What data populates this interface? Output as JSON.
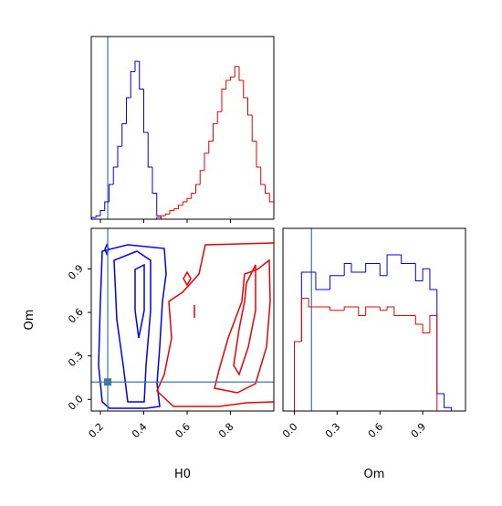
{
  "chart_data": {
    "type": "corner",
    "parameters": [
      {
        "name": "H0",
        "lim": [
          0.158,
          1.0
        ],
        "ticks": [
          0.2,
          0.4,
          0.6,
          0.8
        ]
      },
      {
        "name": "Om",
        "lim": [
          -0.08,
          1.2
        ],
        "ticks": [
          {
            "value": 0,
            "label": "0.0"
          },
          0.3,
          0.6,
          0.9
        ]
      }
    ],
    "om_ylim": [
      -0.08,
      1.18
    ],
    "hist_ylim": [
      0,
      1
    ],
    "truths": [
      0.234,
      0.12
    ],
    "truth_color": "#3b78a8",
    "series": [
      {
        "color": "#0000ee",
        "hists": [
          {
            "bins": [
              0.16,
              0.18,
              0.2,
              0.22,
              0.24,
              0.26,
              0.28,
              0.3,
              0.32,
              0.34,
              0.36,
              0.38,
              0.4,
              0.42,
              0.44,
              0.46,
              0.48
            ],
            "counts": [
              0.01,
              0.02,
              0.05,
              0.1,
              0.2,
              0.3,
              0.42,
              0.55,
              0.7,
              0.85,
              0.91,
              0.75,
              0.5,
              0.3,
              0.15,
              0.02
            ]
          },
          {
            "bins": [
              0,
              0.05,
              0.1,
              0.15,
              0.2,
              0.25,
              0.3,
              0.35,
              0.4,
              0.45,
              0.5,
              0.55,
              0.6,
              0.65,
              0.7,
              0.75,
              0.8,
              0.85,
              0.9,
              0.95,
              1.0,
              1.05,
              1.1
            ],
            "counts": [
              0.4,
              0.8,
              0.8,
              0.7,
              0.7,
              0.78,
              0.78,
              0.85,
              0.8,
              0.8,
              0.85,
              0.85,
              0.78,
              0.9,
              0.9,
              0.85,
              0.85,
              0.75,
              0.82,
              0.7,
              0.1,
              0.02
            ]
          }
        ]
      },
      {
        "color": "#ee0000",
        "hists": [
          {
            "bins": [
              0.46,
              0.48,
              0.5,
              0.52,
              0.54,
              0.56,
              0.58,
              0.6,
              0.62,
              0.64,
              0.66,
              0.68,
              0.7,
              0.72,
              0.74,
              0.76,
              0.78,
              0.8,
              0.82,
              0.84,
              0.86,
              0.88,
              0.9,
              0.92,
              0.94,
              0.96,
              0.98,
              1.0
            ],
            "counts": [
              0.01,
              0.02,
              0.03,
              0.05,
              0.06,
              0.08,
              0.1,
              0.12,
              0.15,
              0.2,
              0.28,
              0.38,
              0.45,
              0.55,
              0.62,
              0.75,
              0.8,
              0.82,
              0.88,
              0.8,
              0.7,
              0.6,
              0.45,
              0.3,
              0.2,
              0.15,
              0.1
            ]
          },
          {
            "bins": [
              0,
              0.05,
              0.1,
              0.15,
              0.2,
              0.25,
              0.3,
              0.35,
              0.4,
              0.45,
              0.5,
              0.55,
              0.6,
              0.65,
              0.7,
              0.75,
              0.8,
              0.85,
              0.9,
              0.95,
              1.0
            ],
            "counts": [
              0.4,
              0.65,
              0.6,
              0.6,
              0.6,
              0.58,
              0.58,
              0.6,
              0.6,
              0.55,
              0.6,
              0.6,
              0.58,
              0.6,
              0.55,
              0.55,
              0.55,
              0.5,
              0.45,
              0.55
            ]
          }
        ]
      }
    ]
  }
}
